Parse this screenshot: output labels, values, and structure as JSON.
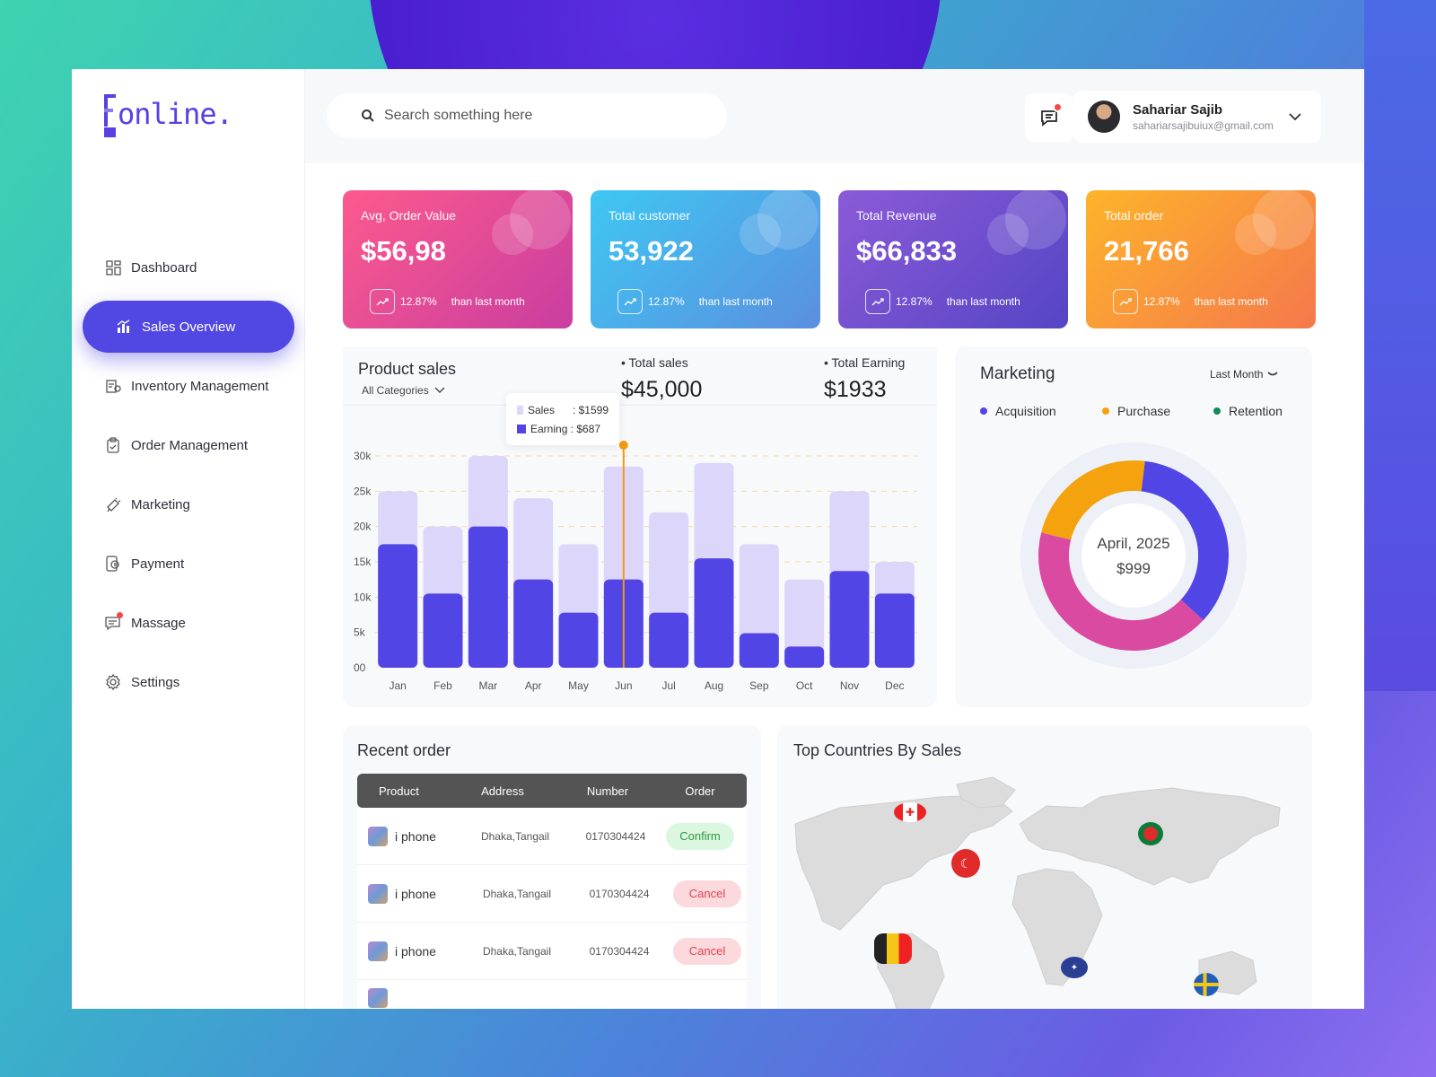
{
  "brand": {
    "logo_text": "online."
  },
  "sidebar": {
    "items": [
      {
        "label": "Dashboard",
        "icon": "grid-icon"
      },
      {
        "label": "Sales Overview",
        "icon": "bar-chart-icon",
        "active": true
      },
      {
        "label": "Inventory Management",
        "icon": "inventory-icon"
      },
      {
        "label": "Order Management",
        "icon": "clipboard-icon"
      },
      {
        "label": "Marketing",
        "icon": "megaphone-icon"
      },
      {
        "label": "Payment",
        "icon": "payment-icon"
      },
      {
        "label": "Massage",
        "icon": "chat-icon",
        "has_notification": true
      },
      {
        "label": "Settings",
        "icon": "gear-icon"
      }
    ]
  },
  "header": {
    "search_placeholder": "Search something here",
    "user": {
      "name": "Sahariar Sajib",
      "email": "sahariarsajibuiux@gmail.com"
    }
  },
  "cards": [
    {
      "label": "Avg, Order Value",
      "value": "$56,98",
      "change": "12.87%",
      "note": "than last month",
      "color": "#ec4a8f"
    },
    {
      "label": "Total customer",
      "value": "53,922",
      "change": "12.87%",
      "note": "than last month",
      "color": "#3fb7ec"
    },
    {
      "label": "Total Revenue",
      "value": "$66,833",
      "change": "12.87%",
      "note": "than last month",
      "color": "#7a55d8"
    },
    {
      "label": "Total order",
      "value": "21,766",
      "change": "12.87%",
      "note": "than last month",
      "color": "#f79a3a"
    }
  ],
  "product_sales": {
    "title": "Product sales",
    "category": "All Categories",
    "total_sales_label": "Total sales",
    "total_sales_value": "$45,000",
    "total_earning_label": "Total Earning",
    "total_earning_value": "$1933",
    "tooltip": {
      "sales": "Sales      : $1599",
      "earning": "Earning : $687"
    }
  },
  "chart_data": {
    "type": "bar",
    "categories": [
      "Jan",
      "Feb",
      "Mar",
      "Apr",
      "May",
      "Jun",
      "Jul",
      "Aug",
      "Sep",
      "Oct",
      "Nov",
      "Dec"
    ],
    "series": [
      {
        "name": "Sales",
        "values": [
          25000,
          20000,
          30000,
          24000,
          17500,
          28500,
          22000,
          29000,
          17500,
          12500,
          25000,
          15000
        ],
        "color": "#dcd6fb"
      },
      {
        "name": "Earning",
        "values": [
          17500,
          10500,
          20000,
          12500,
          7800,
          12500,
          7800,
          15500,
          4900,
          3000,
          13700,
          10500
        ],
        "color": "#5245e6"
      }
    ],
    "yticks": [
      "00",
      "5k",
      "10k",
      "15k",
      "20k",
      "25k",
      "30k"
    ],
    "ylim": [
      0,
      30000
    ],
    "highlight": "Jun",
    "highlight_color": "#f29a0c"
  },
  "marketing": {
    "title": "Marketing",
    "period": "Last Month",
    "legend": [
      {
        "label": "Acquisition",
        "color": "#5245e6"
      },
      {
        "label": "Purchase",
        "color": "#f4a30e"
      },
      {
        "label": "Retention",
        "color": "#128a55"
      }
    ],
    "donut": [
      {
        "label": "Acquisition",
        "fraction": 0.35,
        "color": "#5245e6"
      },
      {
        "label": "Retention",
        "fraction": 0.42,
        "color": "#d94aa0"
      },
      {
        "label": "Purchase",
        "fraction": 0.23,
        "color": "#f4a30e"
      }
    ],
    "center_date": "April, 2025",
    "center_value": "$999"
  },
  "recent_order": {
    "title": "Recent order",
    "columns": [
      "Product",
      "Address",
      "Number",
      "Order"
    ],
    "rows": [
      {
        "product": "i phone",
        "address": "Dhaka,Tangail",
        "number": "0170304424",
        "status": "Confirm"
      },
      {
        "product": "i phone",
        "address": "Dhaka,Tangail",
        "number": "0170304424",
        "status": "Cancel"
      },
      {
        "product": "i phone",
        "address": "Dhaka,Tangail",
        "number": "0170304424",
        "status": "Cancel"
      }
    ]
  },
  "top_countries": {
    "title": "Top Countries By Sales"
  }
}
